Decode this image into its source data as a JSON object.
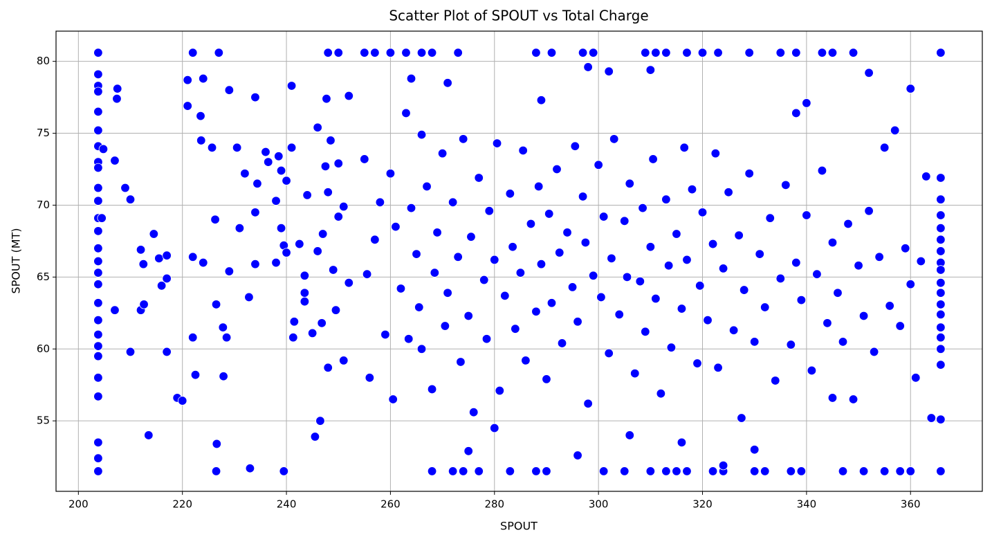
{
  "chart_data": {
    "type": "scatter",
    "title": "Scatter Plot of SPOUT vs Total Charge",
    "x_label": "SPOUT",
    "y_label": "SPOUT (MT)",
    "color": "#0000ff",
    "grid": true,
    "xlim": [
      195.7,
      373.8
    ],
    "ylim": [
      50.1,
      82.1
    ],
    "xticks": [
      200,
      220,
      240,
      260,
      280,
      300,
      320,
      340,
      360
    ],
    "yticks": [
      55,
      60,
      65,
      70,
      75,
      80
    ],
    "x": [
      203.8,
      203.8,
      203.8,
      203.8,
      203.8,
      203.8,
      203.8,
      203.8,
      203.8,
      203.8,
      203.8,
      203.8,
      203.8,
      203.8,
      203.8,
      203.8,
      203.8,
      203.8,
      203.8,
      203.8,
      203.8,
      203.8,
      203.8,
      203.8,
      203.8,
      203.8,
      203.8,
      365.8,
      365.8,
      365.8,
      365.8,
      365.8,
      365.8,
      365.8,
      365.8,
      365.8,
      365.8,
      365.8,
      365.8,
      365.8,
      365.8,
      365.8,
      365.8,
      365.8,
      365.8,
      365.8,
      222,
      227,
      248,
      250,
      255,
      257,
      260,
      263,
      266,
      268,
      273,
      288,
      291,
      297,
      299,
      309,
      311,
      313,
      317,
      320,
      323,
      329,
      335,
      338,
      343,
      345,
      349,
      226.5,
      239.5,
      268,
      272,
      274,
      277,
      283,
      288,
      290,
      301,
      305,
      310,
      313,
      315,
      317,
      322,
      324,
      330,
      332,
      337,
      339,
      347,
      351,
      355,
      358,
      360,
      204.5,
      204.8,
      207,
      207,
      207.5,
      207.4,
      209,
      210,
      210,
      212,
      212,
      212.6,
      212.5,
      213.5,
      214.5,
      215.5,
      216,
      217,
      217,
      217,
      219,
      220,
      221,
      221,
      222,
      222,
      222.5,
      223.5,
      223.6,
      224,
      224,
      225.7,
      226.3,
      226.5,
      226.6,
      227.8,
      227.9,
      228.5,
      229,
      229,
      230.5,
      231,
      232,
      232.8,
      233,
      234,
      234,
      234,
      234.4,
      236,
      236.5,
      238,
      238,
      238.5,
      239,
      239,
      239.5,
      240,
      240,
      241,
      241,
      241.5,
      241.3,
      242.5,
      243.5,
      243.5,
      243.5,
      244,
      245,
      245.5,
      246,
      246,
      246.5,
      246.8,
      247,
      247.5,
      247.7,
      248,
      248,
      248.5,
      249,
      249.5,
      250,
      250,
      251,
      251,
      252,
      252,
      255,
      255.5,
      256,
      257,
      258,
      259,
      260,
      260.5,
      261,
      262,
      263,
      263.5,
      264,
      265,
      265.5,
      266,
      267,
      268,
      268.5,
      269,
      270,
      270.5,
      271,
      272,
      273,
      273.5,
      274,
      275,
      275.5,
      276,
      277,
      278,
      278.5,
      279,
      280,
      280.5,
      281,
      282,
      283,
      283.5,
      284,
      285,
      285.5,
      286,
      287,
      288,
      288.5,
      289,
      290,
      290.5,
      291,
      292,
      292.5,
      293,
      294,
      295,
      295.5,
      296,
      297,
      297.5,
      298,
      299,
      300,
      300.5,
      301,
      302,
      302.5,
      303,
      304,
      305,
      305.5,
      306,
      307,
      308,
      308.5,
      309,
      310,
      310.5,
      311,
      312,
      313,
      313.5,
      314,
      315,
      316,
      316.5,
      317,
      318,
      319,
      319.5,
      320,
      321,
      322,
      322.5,
      323,
      324,
      325,
      326,
      327,
      327.5,
      328,
      329,
      330,
      331,
      332,
      333,
      334,
      335,
      336,
      337,
      338,
      339,
      340,
      341,
      342,
      343,
      344,
      345,
      346,
      347,
      348,
      349,
      350,
      351,
      352,
      353,
      354,
      355,
      356,
      357,
      358,
      359,
      360,
      360,
      361,
      362,
      363,
      364,
      352,
      340,
      338,
      310,
      302,
      298,
      289,
      264,
      271,
      266,
      330,
      324,
      306,
      296,
      280,
      275,
      345,
      316
    ],
    "values": [
      80.6,
      79.1,
      78.3,
      77.9,
      76.5,
      75.2,
      74.1,
      73,
      72.6,
      71.2,
      70.3,
      69.1,
      68.2,
      67,
      66.1,
      65.3,
      64.5,
      63.2,
      62,
      61,
      60.2,
      59.5,
      58,
      56.7,
      53.5,
      52.4,
      51.5,
      80.6,
      71.9,
      70.4,
      69.3,
      68.4,
      67.6,
      66.8,
      66,
      65.5,
      64.6,
      63.9,
      63.1,
      62.4,
      61.5,
      60.8,
      60,
      58.9,
      55.1,
      51.5,
      80.6,
      80.6,
      80.6,
      80.6,
      80.6,
      80.6,
      80.6,
      80.6,
      80.6,
      80.6,
      80.6,
      80.6,
      80.6,
      80.6,
      80.6,
      80.6,
      80.6,
      80.6,
      80.6,
      80.6,
      80.6,
      80.6,
      80.6,
      80.6,
      80.6,
      80.6,
      80.6,
      51.5,
      51.5,
      51.5,
      51.5,
      51.5,
      51.5,
      51.5,
      51.5,
      51.5,
      51.5,
      51.5,
      51.5,
      51.5,
      51.5,
      51.5,
      51.5,
      51.5,
      51.5,
      51.5,
      51.5,
      51.5,
      51.5,
      51.5,
      51.5,
      51.5,
      51.5,
      69.1,
      73.9,
      73.1,
      62.7,
      78.1,
      77.4,
      71.2,
      70.4,
      59.8,
      66.9,
      62.7,
      63.1,
      65.9,
      54,
      68,
      66.3,
      64.4,
      59.8,
      66.5,
      64.9,
      56.6,
      56.4,
      78.7,
      76.9,
      66.4,
      60.8,
      58.2,
      76.2,
      74.5,
      78.8,
      66,
      74,
      69,
      63.1,
      53.4,
      61.5,
      58.1,
      60.8,
      78,
      65.4,
      74,
      68.4,
      72.2,
      63.6,
      51.7,
      77.5,
      69.5,
      65.9,
      71.5,
      73.7,
      73,
      70.3,
      66,
      73.4,
      72.4,
      68.4,
      67.2,
      71.7,
      66.7,
      74,
      78.3,
      61.9,
      60.8,
      67.3,
      63.9,
      63.3,
      65.1,
      70.7,
      61.1,
      53.9,
      66.8,
      75.4,
      55,
      61.8,
      68,
      72.7,
      77.4,
      70.9,
      58.7,
      74.5,
      65.5,
      62.7,
      72.9,
      69.2,
      59.2,
      69.9,
      77.6,
      64.6,
      73.2,
      65.2,
      58,
      67.6,
      70.2,
      61,
      72.2,
      56.5,
      68.5,
      64.2,
      76.4,
      60.7,
      69.8,
      66.6,
      62.9,
      74.9,
      71.3,
      57.2,
      65.3,
      68.1,
      73.6,
      61.6,
      63.9,
      70.2,
      66.4,
      59.1,
      74.6,
      62.3,
      67.8,
      55.6,
      71.9,
      64.8,
      60.7,
      69.6,
      66.2,
      74.3,
      57.1,
      63.7,
      70.8,
      67.1,
      61.4,
      65.3,
      73.8,
      59.2,
      68.7,
      62.6,
      71.3,
      65.9,
      57.9,
      69.4,
      63.2,
      72.5,
      66.7,
      60.4,
      68.1,
      64.3,
      74.1,
      61.9,
      70.6,
      67.4,
      56.2,
      65.1,
      72.8,
      63.6,
      69.2,
      59.7,
      66.3,
      74.6,
      62.4,
      68.9,
      65,
      71.5,
      58.3,
      64.7,
      69.8,
      61.2,
      67.1,
      73.2,
      63.5,
      56.9,
      70.4,
      65.8,
      60.1,
      68,
      62.8,
      74,
      66.2,
      71.1,
      59,
      64.4,
      69.5,
      62,
      67.3,
      73.6,
      58.7,
      65.6,
      70.9,
      61.3,
      67.9,
      55.2,
      64.1,
      72.2,
      60.5,
      66.6,
      62.9,
      69.1,
      57.8,
      64.9,
      71.4,
      60.3,
      66,
      63.4,
      69.3,
      58.5,
      65.2,
      72.4,
      61.8,
      67.4,
      63.9,
      60.5,
      68.7,
      56.5,
      65.8,
      62.3,
      69.6,
      59.8,
      66.4,
      74,
      63,
      75.2,
      61.6,
      67,
      78.1,
      64.5,
      58,
      66.1,
      72,
      55.2,
      79.2,
      77.1,
      76.4,
      79.4,
      79.3,
      79.6,
      77.3,
      78.8,
      78.5,
      60,
      53,
      51.9,
      54,
      52.6,
      54.5,
      52.9,
      56.6,
      53.5
    ]
  }
}
